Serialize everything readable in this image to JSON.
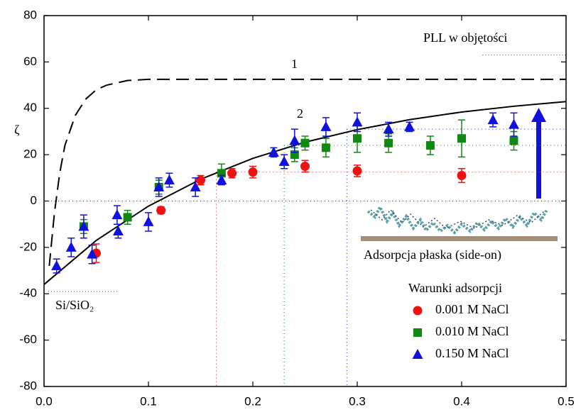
{
  "chart_data": {
    "type": "scatter",
    "y_label": "ζ",
    "xlim": [
      0,
      0.5
    ],
    "ylim": [
      -80,
      80
    ],
    "xticks": [
      {
        "value": 0,
        "label": "0.0"
      },
      0.1,
      0.2,
      0.3,
      0.4,
      0.5
    ],
    "yticks": [
      -80,
      -60,
      -40,
      -20,
      0,
      20,
      40,
      60,
      80
    ],
    "legend_title": "Warunki adsorpcji",
    "legend": "lower right",
    "series": [
      {
        "name": "0.001 M NaCl",
        "color": "#ee1111",
        "marker": "circle",
        "x": [
          0.05,
          0.112,
          0.15,
          0.18,
          0.2,
          0.25,
          0.3,
          0.4
        ],
        "values": [
          -22.5,
          -4,
          9,
          12,
          12.5,
          15,
          13,
          11
        ],
        "errors": [
          4,
          1.5,
          2,
          2,
          2.5,
          2.5,
          2.5,
          3
        ],
        "plateau": 12.5,
        "x_half": 0.165
      },
      {
        "name": "0.010 M NaCl",
        "color": "#118811",
        "marker": "square",
        "x": [
          0.038,
          0.08,
          0.11,
          0.17,
          0.24,
          0.25,
          0.27,
          0.3,
          0.33,
          0.37,
          0.4,
          0.45
        ],
        "values": [
          -11,
          -7,
          6,
          12,
          20,
          25,
          23,
          27,
          25,
          24,
          27,
          26
        ],
        "errors": [
          3,
          3,
          3,
          4,
          3,
          3,
          4,
          6,
          4,
          4,
          8,
          4
        ],
        "plateau": 24,
        "x_half": 0.23
      },
      {
        "name": "0.150 M NaCl",
        "color": "#1111dd",
        "marker": "triangle",
        "x": [
          0.012,
          0.026,
          0.038,
          0.046,
          0.07,
          0.071,
          0.1,
          0.11,
          0.12,
          0.145,
          0.17,
          0.22,
          0.23,
          0.24,
          0.27,
          0.3,
          0.33,
          0.35,
          0.43,
          0.45
        ],
        "values": [
          -28,
          -20,
          -11,
          -23,
          -6,
          -13,
          -9,
          6,
          9,
          6,
          9,
          21,
          17,
          26,
          32,
          34,
          31,
          32,
          35,
          33
        ],
        "errors": [
          3,
          4,
          5,
          4,
          4,
          3,
          4,
          4,
          3,
          4,
          2,
          2,
          3,
          5,
          4,
          4,
          3,
          2,
          3,
          5
        ],
        "plateau": 31,
        "x_half": 0.29
      }
    ],
    "curves": [
      {
        "name": "1",
        "dashed": true,
        "x": [
          0.005,
          0.01,
          0.015,
          0.02,
          0.03,
          0.04,
          0.05,
          0.06,
          0.08,
          0.1,
          0.15,
          0.2,
          0.3,
          0.4,
          0.5
        ],
        "values": [
          -28,
          -5,
          12,
          24,
          37,
          44,
          48,
          50,
          52,
          52.5,
          52.5,
          52.5,
          52.5,
          52.5,
          52.5
        ]
      },
      {
        "name": "2",
        "dashed": false,
        "x": [
          0,
          0.05,
          0.1,
          0.15,
          0.2,
          0.25,
          0.3,
          0.35,
          0.4,
          0.45,
          0.5
        ],
        "values": [
          -36,
          -17,
          -2.2,
          9.4,
          18.4,
          25.4,
          30.8,
          35.1,
          38.4,
          40.9,
          42.9
        ]
      }
    ],
    "reference_lines": [
      {
        "label": "PLL w objętości",
        "y": 63,
        "x": [
          0.42,
          0.5
        ]
      },
      {
        "label": "Si/SiO₂",
        "y": -39,
        "x": [
          0.004,
          0.07
        ]
      }
    ],
    "inset_label": "Adsorpcja płaska (side-on)"
  }
}
